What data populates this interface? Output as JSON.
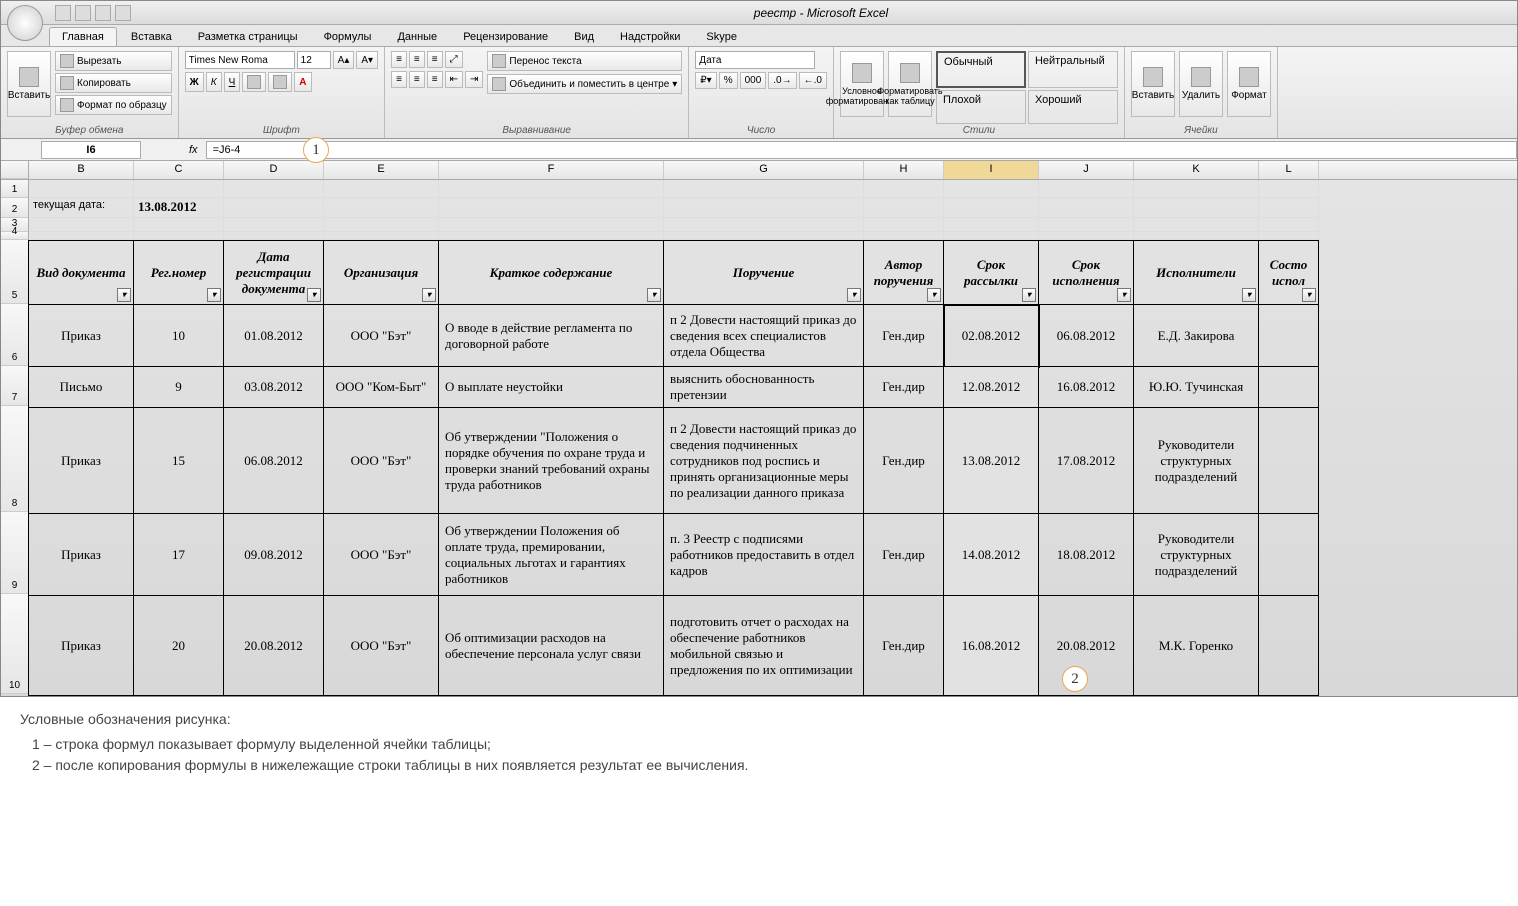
{
  "title": "реестр - Microsoft Excel",
  "tabs": [
    "Главная",
    "Вставка",
    "Разметка страницы",
    "Формулы",
    "Данные",
    "Рецензирование",
    "Вид",
    "Надстройки",
    "Skype"
  ],
  "active_tab": 0,
  "ribbon": {
    "clipboard": {
      "paste": "Вставить",
      "cut": "Вырезать",
      "copy": "Копировать",
      "format": "Формат по образцу",
      "label": "Буфер обмена"
    },
    "font": {
      "family": "Times New Roma",
      "size": "12",
      "label": "Шрифт",
      "bold": "Ж",
      "italic": "К",
      "underline": "Ч"
    },
    "align": {
      "wrap": "Перенос текста",
      "merge": "Объединить и поместить в центре",
      "label": "Выравнивание"
    },
    "number": {
      "format": "Дата",
      "label": "Число"
    },
    "styles": {
      "cond": "Условное форматирование",
      "table": "Форматировать как таблицу",
      "s1": "Обычный",
      "s2": "Нейтральный",
      "s3": "Плохой",
      "s4": "Хороший",
      "label": "Стили"
    },
    "cells": {
      "insert": "Вставить",
      "delete": "Удалить",
      "format": "Формат",
      "label": "Ячейки"
    }
  },
  "name_box": "I6",
  "formula": "=J6-4",
  "cols": {
    "letters": [
      "B",
      "C",
      "D",
      "E",
      "F",
      "G",
      "H",
      "I",
      "J",
      "K",
      "L"
    ],
    "widths": [
      105,
      90,
      100,
      115,
      225,
      200,
      80,
      95,
      95,
      125,
      60
    ],
    "sel_index": 7
  },
  "top_rows": {
    "r2_label": "текущая дата:",
    "r2_value": "13.08.2012"
  },
  "table_headers": [
    "Вид документа",
    "Рег.номер",
    "Дата регистрации документа",
    "Организация",
    "Краткое содержание",
    "Поручение",
    "Автор поручения",
    "Срок рассылки",
    "Срок исполнения",
    "Исполнители",
    "Состо\nиспол"
  ],
  "rows": [
    {
      "n": 6,
      "type": "Приказ",
      "reg": "10",
      "date": "01.08.2012",
      "org": "ООО \"Бэт\"",
      "summary": "О вводе в действие регламента по договорной работе",
      "order": "п 2 Довести настоящий приказ до сведения всех специалистов отдела Общества",
      "author": "Ген.дир",
      "send": "02.08.2012",
      "exec": "06.08.2012",
      "resp": "Е.Д. Закирова",
      "hl": false
    },
    {
      "n": 7,
      "type": "Письмо",
      "reg": "9",
      "date": "03.08.2012",
      "org": "ООО \"Ком-Быт\"",
      "summary": "О выплате неустойки",
      "order": "выяснить обоснованность претензии",
      "author": "Ген.дир",
      "send": "12.08.2012",
      "exec": "16.08.2012",
      "resp": "Ю.Ю. Тучинская",
      "hl": true
    },
    {
      "n": 8,
      "type": "Приказ",
      "reg": "15",
      "date": "06.08.2012",
      "org": "ООО \"Бэт\"",
      "summary": "Об утверждении \"Положения о порядке обучения по охране труда и проверки знаний требований охраны труда работников",
      "order": "п 2 Довести настоящий приказ до сведения подчиненных сотрудников под роспись и принять организационные меры по реализации данного приказа",
      "author": "Ген.дир",
      "send": "13.08.2012",
      "exec": "17.08.2012",
      "resp": "Руководители структурных подразделений",
      "hl": true
    },
    {
      "n": 9,
      "type": "Приказ",
      "reg": "17",
      "date": "09.08.2012",
      "org": "ООО \"Бэт\"",
      "summary": "Об утверждении Положения об оплате труда, премировании, социальных льготах и гарантиях работников",
      "order": "п. 3 Реестр с подписями работников предоставить в отдел кадров",
      "author": "Ген.дир",
      "send": "14.08.2012",
      "exec": "18.08.2012",
      "resp": "Руководители структурных подразделений",
      "hl": true
    },
    {
      "n": 10,
      "type": "Приказ",
      "reg": "20",
      "date": "20.08.2012",
      "org": "ООО \"Бэт\"",
      "summary": "Об оптимизации расходов на обеспечение персонала услуг связи",
      "order": "подготовить отчет о расходах на обеспечение работников мобильной связью и предложения по их оптимизации",
      "author": "Ген.дир",
      "send": "16.08.2012",
      "exec": "20.08.2012",
      "resp": "М.К. Горенко",
      "hl": true
    }
  ],
  "legend": {
    "title": "Условные обозначения рисунка:",
    "l1": "1 – строка формул показывает формулу выделенной ячейки таблицы;",
    "l2": "2 – после копирования формулы в нижележащие строки таблицы в них появляется результат ее вычисления."
  },
  "callouts": {
    "c1": "1",
    "c2": "2"
  }
}
